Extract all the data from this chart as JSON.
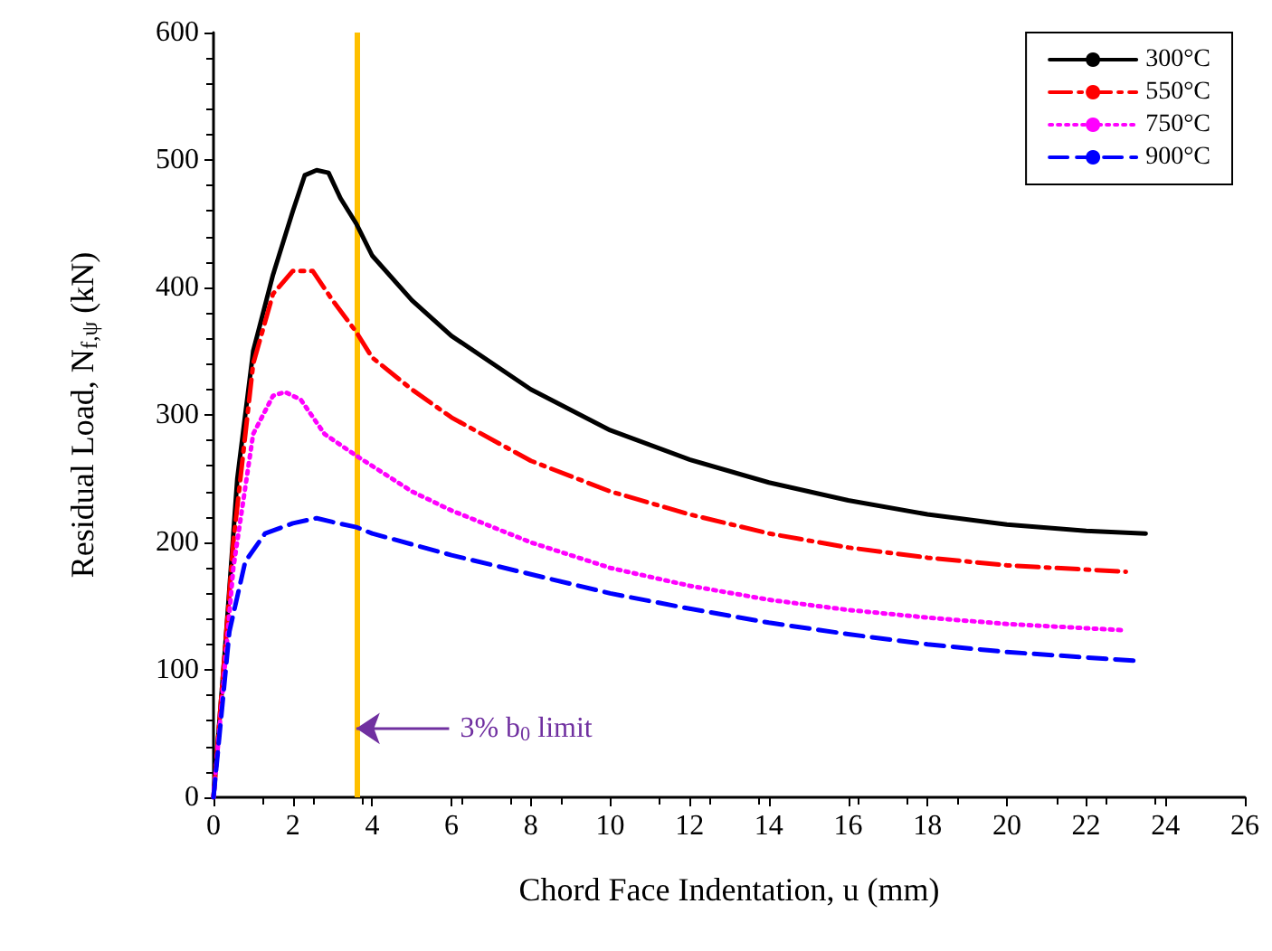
{
  "chart_data": {
    "type": "line",
    "xlabel": "Chord Face Indentation, u (mm)",
    "ylabel": "Residual Load, N$_{f,ψ}$ (kN)",
    "xlim": [
      0,
      26
    ],
    "xticks": [
      0,
      2,
      4,
      6,
      8,
      10,
      12,
      14,
      16,
      18,
      20,
      22,
      24,
      26
    ],
    "ylim": [
      0,
      600
    ],
    "yticks": [
      0,
      100,
      200,
      300,
      400,
      500,
      600
    ],
    "grid": false,
    "legend": "top right",
    "marker": "none",
    "series": [
      {
        "name": "300°C",
        "color": "#000000",
        "line_style": "solid",
        "x": [
          0,
          0.3,
          0.6,
          1,
          1.5,
          2,
          2.3,
          2.6,
          2.9,
          3.2,
          3.6,
          4,
          5,
          6,
          8,
          10,
          12,
          14,
          16,
          18,
          20,
          22,
          23.5
        ],
        "values": [
          0,
          120,
          250,
          350,
          410,
          460,
          488,
          492,
          490,
          470,
          450,
          425,
          390,
          362,
          320,
          288,
          265,
          247,
          233,
          222,
          214,
          209,
          207
        ]
      },
      {
        "name": "550°C",
        "color": "#ff0000",
        "line_style": "dashdot",
        "x": [
          0,
          0.5,
          1,
          1.5,
          2,
          2.5,
          3,
          3.6,
          4,
          5,
          6,
          8,
          10,
          12,
          14,
          16,
          18,
          20,
          23
        ],
        "values": [
          0,
          200,
          340,
          395,
          413,
          413,
          390,
          365,
          345,
          320,
          298,
          264,
          240,
          222,
          207,
          196,
          188,
          182,
          177
        ]
      },
      {
        "name": "750°C",
        "color": "#ff00ff",
        "line_style": "dotted",
        "x": [
          0,
          0.5,
          1,
          1.5,
          1.8,
          2.2,
          2.8,
          3.6,
          4,
          5,
          6,
          8,
          10,
          12,
          14,
          16,
          18,
          20,
          23
        ],
        "values": [
          0,
          180,
          285,
          315,
          318,
          312,
          285,
          268,
          260,
          240,
          225,
          200,
          180,
          166,
          155,
          147,
          141,
          136,
          131
        ]
      },
      {
        "name": "900°C",
        "color": "#0000ff",
        "line_style": "dashed",
        "x": [
          0,
          0.4,
          0.8,
          1.3,
          2,
          2.6,
          3,
          3.6,
          4,
          6,
          8,
          10,
          12,
          14,
          16,
          18,
          20,
          23.3
        ],
        "values": [
          0,
          130,
          185,
          207,
          215,
          219,
          216,
          212,
          207,
          190,
          175,
          160,
          148,
          137,
          128,
          120,
          114,
          107
        ]
      }
    ],
    "ref_lines": [
      {
        "axis": "x",
        "value": 3.6,
        "color": "#ffc000"
      }
    ],
    "annotations": [
      {
        "text": "3% b$_{0}$ limit",
        "x": 3.6,
        "y": 54
      }
    ]
  }
}
